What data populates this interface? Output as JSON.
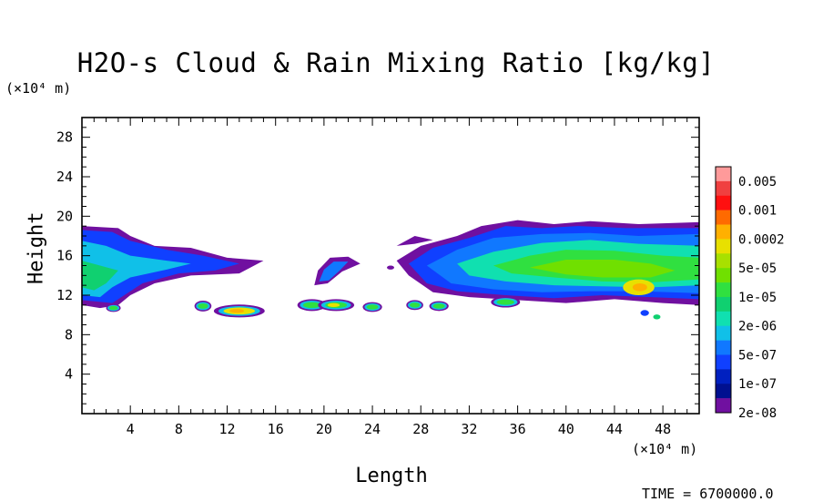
{
  "chart_data": {
    "type": "heatmap",
    "title": "H2O-s Cloud & Rain Mixing Ratio [kg/kg]",
    "xlabel": "Length",
    "ylabel": "Height",
    "x_unit": "(×10⁴ m)",
    "y_unit": "(×10⁴ m)",
    "xlim": [
      0,
      51
    ],
    "ylim": [
      0,
      30
    ],
    "xticks": [
      4,
      8,
      12,
      16,
      20,
      24,
      28,
      32,
      36,
      40,
      44,
      48
    ],
    "yticks": [
      4,
      8,
      12,
      16,
      20,
      24,
      28
    ],
    "colorbar": {
      "labels": [
        "0.005",
        "0.001",
        "0.0002",
        "5e-05",
        "1e-05",
        "2e-06",
        "5e-07",
        "1e-07",
        "2e-08"
      ],
      "colors": [
        "#ff9a9a",
        "#f04040",
        "#ff1010",
        "#ff6a00",
        "#ffb000",
        "#e8e000",
        "#a8e000",
        "#70e000",
        "#30e040",
        "#10d070",
        "#10e0b0",
        "#10c0e8",
        "#1078ff",
        "#1040ff",
        "#0020c0",
        "#001090",
        "#7010a0"
      ]
    },
    "cloud_regions": [
      {
        "name": "upper-left-layer",
        "x_range": [
          0,
          15
        ],
        "y_range": [
          11,
          19
        ],
        "max_level": "1e-05"
      },
      {
        "name": "upper-right-layer",
        "x_range": [
          26,
          51
        ],
        "y_range": [
          11,
          19.5
        ],
        "max_level": "5e-05"
      },
      {
        "name": "central-cell",
        "x_range": [
          19,
          22
        ],
        "y_range": [
          13,
          16
        ],
        "max_level": "2e-06"
      },
      {
        "name": "low-clouds",
        "x_range": [
          9.5,
          37
        ],
        "y_range": [
          10,
          11.5
        ],
        "max_level": "0.0002"
      }
    ],
    "footer": "TIME = 6700000.0"
  }
}
